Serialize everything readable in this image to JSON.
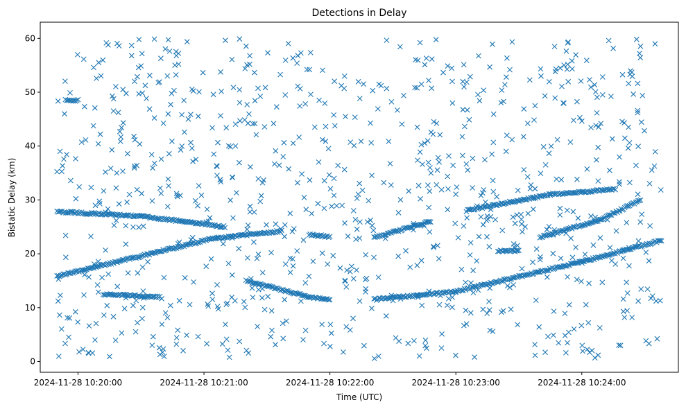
{
  "chart_data": {
    "type": "scatter",
    "title": "Detections in Delay",
    "xlabel": "Time (UTC)",
    "ylabel": "Bistatic Delay (km)",
    "x_axis": {
      "start": "2024-11-28 10:19:50",
      "end": "2024-11-28 10:24:38",
      "tick_labels": [
        "2024-11-28 10:20:00",
        "2024-11-28 10:21:00",
        "2024-11-28 10:22:00",
        "2024-11-28 10:23:00",
        "2024-11-28 10:24:00"
      ]
    },
    "ylim": [
      -2,
      63
    ],
    "y_ticks": [
      0,
      10,
      20,
      30,
      40,
      50,
      60
    ],
    "grid": false,
    "marker": "x",
    "color": "#1f77b4",
    "tracks": [
      {
        "points": [
          [
            "2024-11-28 10:19:50",
            15.8
          ],
          [
            "2024-11-28 10:21:04",
            22.8
          ],
          [
            "2024-11-28 10:21:37",
            24.2
          ]
        ]
      },
      {
        "points": [
          [
            "2024-11-28 10:19:50",
            27.8
          ],
          [
            "2024-11-28 10:20:30",
            27.0
          ],
          [
            "2024-11-28 10:21:10",
            25.0
          ]
        ]
      },
      {
        "points": [
          [
            "2024-11-28 10:20:12",
            12.5
          ],
          [
            "2024-11-28 10:20:39",
            12.0
          ]
        ]
      },
      {
        "points": [
          [
            "2024-11-28 10:21:20",
            15.0
          ],
          [
            "2024-11-28 10:21:50",
            12.0
          ],
          [
            "2024-11-28 10:22:00",
            11.5
          ]
        ]
      },
      {
        "points": [
          [
            "2024-11-28 10:22:21",
            23.0
          ],
          [
            "2024-11-28 10:22:48",
            26.0
          ]
        ]
      },
      {
        "points": [
          [
            "2024-11-28 10:22:21",
            11.5
          ],
          [
            "2024-11-28 10:23:00",
            13.0
          ],
          [
            "2024-11-28 10:24:00",
            18.5
          ],
          [
            "2024-11-28 10:24:38",
            22.5
          ]
        ]
      },
      {
        "points": [
          [
            "2024-11-28 10:23:05",
            28.0
          ],
          [
            "2024-11-28 10:23:45",
            31.0
          ],
          [
            "2024-11-28 10:24:16",
            32.0
          ]
        ]
      },
      {
        "points": [
          [
            "2024-11-28 10:23:40",
            23.0
          ],
          [
            "2024-11-28 10:24:10",
            26.5
          ],
          [
            "2024-11-28 10:24:28",
            30.0
          ]
        ]
      },
      {
        "points": [
          [
            "2024-11-28 10:23:20",
            20.5
          ],
          [
            "2024-11-28 10:23:30",
            20.5
          ]
        ]
      },
      {
        "points": [
          [
            "2024-11-28 10:21:50",
            23.5
          ],
          [
            "2024-11-28 10:22:00",
            23.2
          ]
        ]
      },
      {
        "points": [
          [
            "2024-11-28 10:19:54",
            48.5
          ],
          [
            "2024-11-28 10:20:00",
            48.5
          ]
        ]
      }
    ],
    "scattered_points": {
      "count": 900,
      "y_range": [
        0.5,
        60
      ],
      "x_range": [
        "2024-11-28 10:19:50",
        "2024-11-28 10:24:38"
      ]
    }
  }
}
